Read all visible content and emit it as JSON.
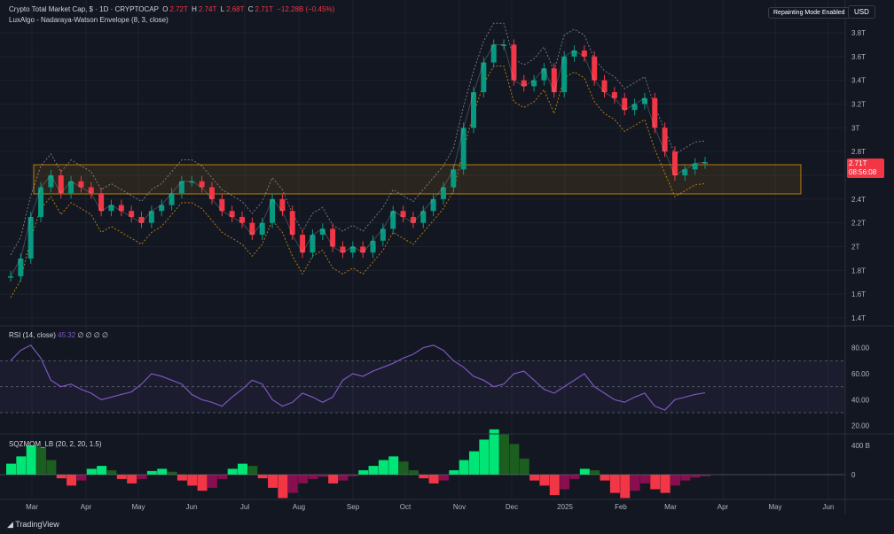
{
  "header": {
    "symbol": "Crypto Total Market Cap, $ · 1D · CRYPTOCAP",
    "o_label": "O",
    "o_value": "2.72T",
    "h_label": "H",
    "h_value": "2.74T",
    "l_label": "L",
    "l_value": "2.68T",
    "c_label": "C",
    "c_value": "2.71T",
    "change": "−12.28B (−0.45%)",
    "indicator": "LuxAlgo - Nadaraya-Watson Envelope (8, 3, close)"
  },
  "toolbar": {
    "repaint_badge": "Repainting Mode Enabled",
    "currency_button": "USD"
  },
  "price_tag": {
    "value": "2.71T",
    "countdown": "08:56:08"
  },
  "rsi": {
    "label": "RSI (14, close)",
    "value": "45.32",
    "extra": "∅ ∅ ∅ ∅",
    "ticks": [
      "80.00",
      "60.00",
      "40.00",
      "20.00"
    ],
    "levels": [
      70,
      50,
      30
    ]
  },
  "sqz": {
    "label": "SQZMOM_LB (20, 2, 20, 1.5)",
    "ticks": [
      "400 B",
      "0"
    ]
  },
  "footer": {
    "brand": "TradingView"
  },
  "colors": {
    "up": "#089981",
    "down": "#f23645",
    "rsi": "#7e57c2",
    "zone": "#f7a600",
    "bg": "#131722"
  },
  "chart_data": {
    "type": "line",
    "x_labels": [
      "Mar",
      "Apr",
      "May",
      "Jun",
      "Jul",
      "Aug",
      "Sep",
      "Oct",
      "Nov",
      "Dec",
      "2025",
      "Feb",
      "Mar",
      "Apr",
      "May",
      "Jun"
    ],
    "y_ticks": [
      "3.8T",
      "3.6T",
      "3.4T",
      "3.2T",
      "3T",
      "2.8T",
      "2.6T",
      "2.4T",
      "2.2T",
      "2T",
      "1.8T",
      "1.6T",
      "1.4T"
    ],
    "y_tick_values": [
      3.8,
      3.6,
      3.4,
      3.2,
      3.0,
      2.8,
      2.6,
      2.4,
      2.2,
      2.0,
      1.8,
      1.6,
      1.4
    ],
    "price_zone": [
      2.45,
      2.7
    ],
    "series": [
      {
        "values": [
          1.75,
          1.9,
          2.25,
          2.5,
          2.6,
          2.45,
          2.55,
          2.5,
          2.45,
          2.3,
          2.35,
          2.3,
          2.25,
          2.2,
          2.3,
          2.35,
          2.45,
          2.55,
          2.55,
          2.5,
          2.4,
          2.3,
          2.25,
          2.2,
          2.1,
          2.2,
          2.4,
          2.3,
          2.1,
          1.95,
          2.1,
          2.15,
          2.0,
          1.95,
          2.0,
          1.95,
          2.05,
          2.15,
          2.3,
          2.25,
          2.2,
          2.3,
          2.4,
          2.5,
          2.65,
          3.0,
          3.3,
          3.55,
          3.7,
          3.7,
          3.4,
          3.35,
          3.4,
          3.5,
          3.3,
          3.6,
          3.65,
          3.6,
          3.4,
          3.3,
          3.25,
          3.15,
          3.2,
          3.25,
          3.0,
          2.8,
          2.6,
          2.65,
          2.7,
          2.71
        ]
      }
    ],
    "rsi_values": [
      70,
      78,
      82,
      72,
      55,
      50,
      52,
      48,
      45,
      40,
      42,
      44,
      46,
      52,
      60,
      58,
      55,
      52,
      44,
      40,
      38,
      35,
      42,
      48,
      55,
      52,
      40,
      35,
      38,
      45,
      42,
      38,
      42,
      55,
      60,
      58,
      62,
      65,
      68,
      72,
      75,
      80,
      82,
      78,
      70,
      65,
      58,
      55,
      50,
      52,
      60,
      62,
      55,
      48,
      45,
      50,
      55,
      60,
      50,
      45,
      40,
      38,
      42,
      45,
      35,
      32,
      40,
      42,
      44,
      45.32
    ],
    "rsi_ylim": [
      15,
      90
    ],
    "sqz_values": [
      150,
      250,
      400,
      380,
      200,
      -50,
      -150,
      -80,
      80,
      120,
      60,
      -60,
      -120,
      -60,
      50,
      80,
      40,
      -80,
      -150,
      -220,
      -180,
      -60,
      80,
      150,
      120,
      -50,
      -180,
      -320,
      -250,
      -120,
      -60,
      -30,
      -120,
      -80,
      -20,
      60,
      120,
      200,
      250,
      180,
      60,
      -50,
      -120,
      -80,
      60,
      200,
      320,
      480,
      620,
      560,
      420,
      220,
      -80,
      -150,
      -280,
      -200,
      -60,
      80,
      60,
      -80,
      -250,
      -320,
      -220,
      -120,
      -200,
      -250,
      -150,
      -80,
      -40,
      -20
    ],
    "sqz_ylim": [
      -600,
      700
    ]
  }
}
